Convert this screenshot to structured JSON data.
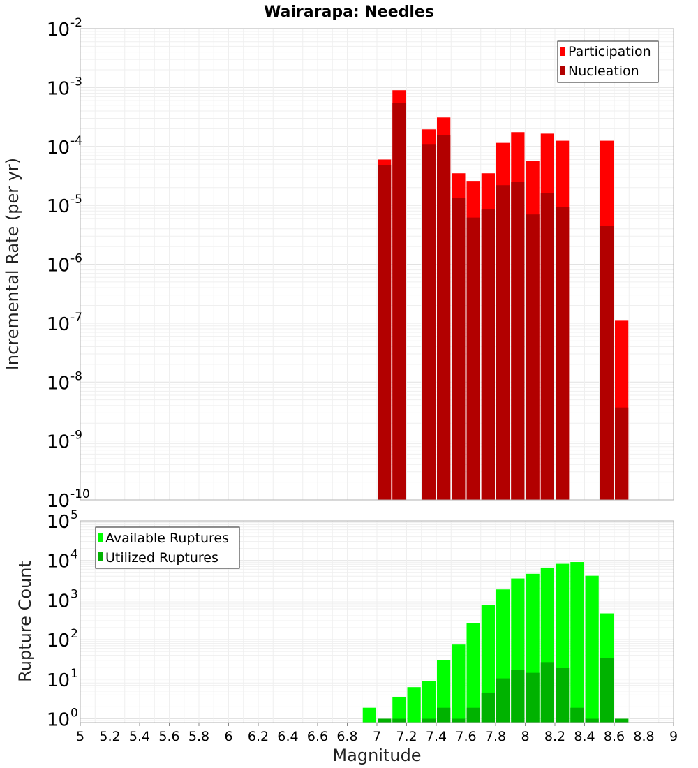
{
  "title": "Wairarapa: Needles",
  "xlabel": "Magnitude",
  "x_ticks": [
    "5",
    "5.2",
    "5.4",
    "5.6",
    "5.8",
    "6",
    "6.2",
    "6.4",
    "6.6",
    "6.8",
    "7",
    "7.2",
    "7.4",
    "7.6",
    "7.8",
    "8",
    "8.2",
    "8.4",
    "8.6",
    "8.8",
    "9"
  ],
  "chart_data": [
    {
      "type": "bar",
      "title": "Wairarapa: Needles",
      "ylabel": "Incremental Rate (per yr)",
      "y_scale": "log",
      "ylim": [
        1e-10,
        0.01
      ],
      "xlim": [
        5,
        9
      ],
      "bar_width": 0.1,
      "grid": true,
      "legend_position": "top-right",
      "y_tick_exponents": [
        "-10",
        "-9",
        "-8",
        "-7",
        "-6",
        "-5",
        "-4",
        "-3",
        "-2"
      ],
      "series": [
        {
          "name": "Participation",
          "color": "#ff0000",
          "points": [
            {
              "x": 7.05,
              "y": 6e-05
            },
            {
              "x": 7.15,
              "y": 0.0009
            },
            {
              "x": 7.35,
              "y": 0.000195
            },
            {
              "x": 7.45,
              "y": 0.00031
            },
            {
              "x": 7.55,
              "y": 3.5e-05
            },
            {
              "x": 7.65,
              "y": 2.6e-05
            },
            {
              "x": 7.75,
              "y": 3.5e-05
            },
            {
              "x": 7.85,
              "y": 0.000115
            },
            {
              "x": 7.95,
              "y": 0.000175
            },
            {
              "x": 8.05,
              "y": 5.6e-05
            },
            {
              "x": 8.15,
              "y": 0.000165
            },
            {
              "x": 8.25,
              "y": 0.000125
            },
            {
              "x": 8.55,
              "y": 0.000125
            },
            {
              "x": 8.65,
              "y": 1.1e-07
            }
          ]
        },
        {
          "name": "Nucleation",
          "color": "#b20000",
          "points": [
            {
              "x": 7.05,
              "y": 4.8e-05
            },
            {
              "x": 7.15,
              "y": 0.00055
            },
            {
              "x": 7.35,
              "y": 0.00011
            },
            {
              "x": 7.45,
              "y": 0.000155
            },
            {
              "x": 7.55,
              "y": 1.35e-05
            },
            {
              "x": 7.65,
              "y": 6.2e-06
            },
            {
              "x": 7.75,
              "y": 8.5e-06
            },
            {
              "x": 7.85,
              "y": 2.2e-05
            },
            {
              "x": 7.95,
              "y": 2.5e-05
            },
            {
              "x": 8.05,
              "y": 7e-06
            },
            {
              "x": 8.15,
              "y": 1.6e-05
            },
            {
              "x": 8.25,
              "y": 9.5e-06
            },
            {
              "x": 8.55,
              "y": 4.5e-06
            },
            {
              "x": 8.65,
              "y": 3.7e-09
            }
          ]
        }
      ]
    },
    {
      "type": "bar",
      "ylabel": "Rupture Count",
      "y_scale": "log",
      "ylim": [
        0.8,
        100000.0
      ],
      "xlim": [
        5,
        9
      ],
      "bar_width": 0.1,
      "grid": true,
      "legend_position": "top-left",
      "y_tick_exponents": [
        "0",
        "1",
        "2",
        "3",
        "4",
        "5"
      ],
      "series": [
        {
          "name": "Available Ruptures",
          "color": "#00ff00",
          "points": [
            {
              "x": 6.95,
              "y": 1.9
            },
            {
              "x": 7.05,
              "y": 1
            },
            {
              "x": 7.15,
              "y": 3.6
            },
            {
              "x": 7.25,
              "y": 6.3
            },
            {
              "x": 7.35,
              "y": 9
            },
            {
              "x": 7.45,
              "y": 30
            },
            {
              "x": 7.55,
              "y": 75
            },
            {
              "x": 7.65,
              "y": 260
            },
            {
              "x": 7.75,
              "y": 760
            },
            {
              "x": 7.85,
              "y": 1850
            },
            {
              "x": 7.95,
              "y": 3500
            },
            {
              "x": 8.05,
              "y": 4600
            },
            {
              "x": 8.15,
              "y": 6600
            },
            {
              "x": 8.25,
              "y": 8200
            },
            {
              "x": 8.35,
              "y": 9100
            },
            {
              "x": 8.45,
              "y": 4100
            },
            {
              "x": 8.55,
              "y": 460
            },
            {
              "x": 8.65,
              "y": 1
            }
          ]
        },
        {
          "name": "Utilized Ruptures",
          "color": "#00b200",
          "points": [
            {
              "x": 7.05,
              "y": 1
            },
            {
              "x": 7.15,
              "y": 1
            },
            {
              "x": 7.35,
              "y": 1
            },
            {
              "x": 7.45,
              "y": 1.9
            },
            {
              "x": 7.55,
              "y": 1
            },
            {
              "x": 7.65,
              "y": 1.9
            },
            {
              "x": 7.75,
              "y": 4.6
            },
            {
              "x": 7.85,
              "y": 10.5
            },
            {
              "x": 7.95,
              "y": 17
            },
            {
              "x": 8.05,
              "y": 14.5
            },
            {
              "x": 8.15,
              "y": 27
            },
            {
              "x": 8.25,
              "y": 19
            },
            {
              "x": 8.35,
              "y": 1.9
            },
            {
              "x": 8.45,
              "y": 1
            },
            {
              "x": 8.55,
              "y": 34
            },
            {
              "x": 8.65,
              "y": 1
            }
          ]
        }
      ]
    }
  ]
}
